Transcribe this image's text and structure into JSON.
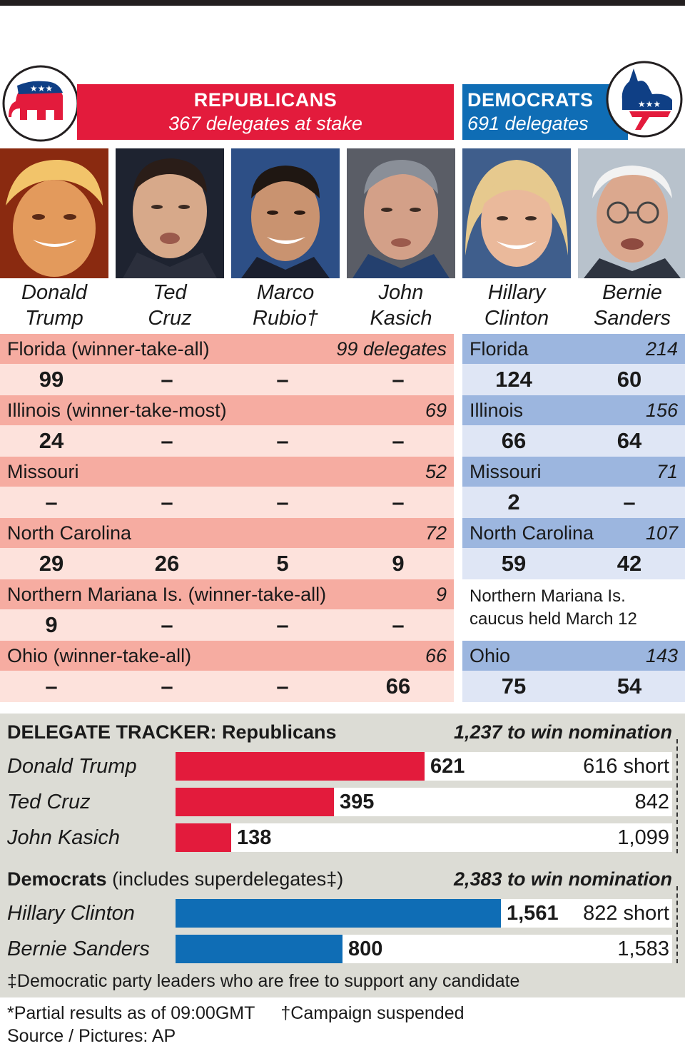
{
  "colors": {
    "republican": "#e31b3c",
    "democrat": "#0f6db5",
    "rep_header_row": "#f6aca1",
    "rep_value_row": "#fde2dc",
    "dem_header_row": "#9cb6df",
    "dem_value_row": "#dfe6f5",
    "tracker_bg": "#dcdcd5"
  },
  "republicans": {
    "title": "REPUBLICANS",
    "subtitle": "367 delegates at stake",
    "logo": "gop-elephant-icon"
  },
  "democrats": {
    "title": "DEMOCRATS",
    "subtitle": "691 delegates",
    "logo": "democratic-donkey-icon"
  },
  "candidates": [
    {
      "first": "Donald",
      "last": "Trump",
      "party": "rep"
    },
    {
      "first": "Ted",
      "last": "Cruz",
      "party": "rep"
    },
    {
      "first": "Marco",
      "last": "Rubio†",
      "party": "rep"
    },
    {
      "first": "John",
      "last": "Kasich",
      "party": "rep"
    },
    {
      "first": "Hillary",
      "last": "Clinton",
      "party": "dem"
    },
    {
      "first": "Bernie",
      "last": "Sanders",
      "party": "dem"
    }
  ],
  "chart_data": [
    {
      "type": "table",
      "title": "",
      "columns": [
        "Donald Trump",
        "Ted Cruz",
        "Marco Rubio†",
        "John Kasich",
        "Hillary Clinton",
        "Bernie Sanders"
      ],
      "republican_rows": [
        {
          "state": "Florida (winner-take-all)",
          "delegates": "99 delegates",
          "values": [
            "99",
            "–",
            "–",
            "–"
          ]
        },
        {
          "state": "Illinois (winner-take-most)",
          "delegates": "69",
          "values": [
            "24",
            "–",
            "–",
            "–"
          ]
        },
        {
          "state": "Missouri",
          "delegates": "52",
          "values": [
            "–",
            "–",
            "–",
            "–"
          ]
        },
        {
          "state": "North Carolina",
          "delegates": "72",
          "values": [
            "29",
            "26",
            "5",
            "9"
          ]
        },
        {
          "state": "Northern Mariana Is. (winner-take-all)",
          "delegates": "9",
          "values": [
            "9",
            "–",
            "–",
            "–"
          ]
        },
        {
          "state": "Ohio (winner-take-all)",
          "delegates": "66",
          "values": [
            "–",
            "–",
            "–",
            "66"
          ]
        }
      ],
      "democrat_rows": [
        {
          "state": "Florida",
          "delegates": "214",
          "values": [
            "124",
            "60"
          ]
        },
        {
          "state": "Illinois",
          "delegates": "156",
          "values": [
            "66",
            "64"
          ]
        },
        {
          "state": "Missouri",
          "delegates": "71",
          "values": [
            "2",
            "–"
          ]
        },
        {
          "state": "North Carolina",
          "delegates": "107",
          "values": [
            "59",
            "42"
          ]
        },
        {
          "note": "Northern Mariana Is. caucus held March 12"
        },
        {
          "state": "Ohio",
          "delegates": "143",
          "values": [
            "75",
            "54"
          ]
        }
      ]
    },
    {
      "type": "bar",
      "orientation": "horizontal",
      "title_bold": "DELEGATE TRACKER:",
      "title_rest": " Republicans",
      "goal_label": "1,237 to win nomination",
      "goal": 1237,
      "categories": [
        "Donald Trump",
        "Ted Cruz",
        "John Kasich"
      ],
      "values": [
        621,
        395,
        138
      ],
      "value_labels": [
        "621",
        "395",
        "138"
      ],
      "short_labels": [
        "616 short",
        "842",
        "1,099"
      ]
    },
    {
      "type": "bar",
      "orientation": "horizontal",
      "title_bold": "Democrats",
      "title_rest": " (includes superdelegates‡)",
      "goal_label": "2,383 to win nomination",
      "goal": 2383,
      "categories": [
        "Hillary Clinton",
        "Bernie Sanders"
      ],
      "values": [
        1561,
        800
      ],
      "value_labels": [
        "1,561",
        "800"
      ],
      "short_labels": [
        "822 short",
        "1,583"
      ]
    }
  ],
  "footnotes": {
    "superdelegates": "‡Democratic party leaders who are free to support any candidate",
    "partial": "*Partial results as of 09:00GMT",
    "suspended": "†Campaign suspended",
    "source": "Source / Pictures: AP"
  }
}
